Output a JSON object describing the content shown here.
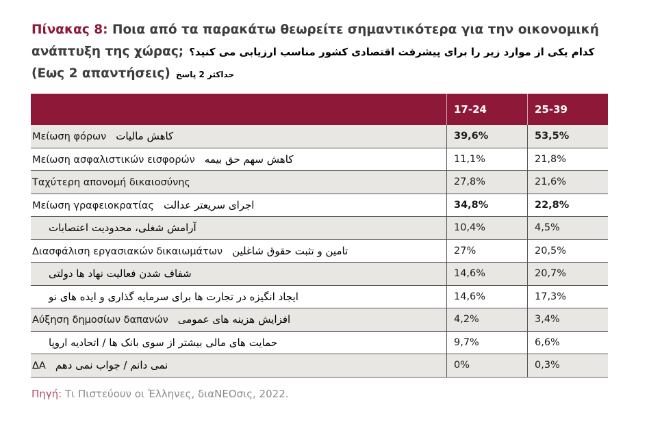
{
  "title": {
    "label": "Πίνακας 8:",
    "line1": " Ποια από τα παρακάτω θεωρείτε σημαντικότερα για την οικονομική",
    "line2": "ανάπτυξη της χώρας;",
    "line2_fa": "کدام یکی از موارد زیر را برای پیشرفت اقتصادی کشور مناسب ارزیابی می کنید؟",
    "line3": "(Εως 2 απαντήσεις)",
    "line3_fa": "حداکثر 2 پاسخ"
  },
  "table": {
    "headers": [
      "",
      "17-24",
      "25-39"
    ],
    "rows": [
      {
        "gr": "Μείωση φόρων",
        "fa": "کاهش مالیات",
        "v1": "39,6%",
        "v2": "53,5%",
        "bold": true
      },
      {
        "gr": "Μείωση ασφαλιστικών εισφορών",
        "fa": "کاهش سهم حق بیمه",
        "v1": "11,1%",
        "v2": "21,8%"
      },
      {
        "gr": "Ταχύτερη απονομή δικαιοσύνης",
        "fa": "",
        "v1": "27,8%",
        "v2": "21,6%"
      },
      {
        "gr": "Μείωση γραφειοκρατίας",
        "fa": "اجرای سریعتر عدالت",
        "v1": "34,8%",
        "v2": "22,8%",
        "bold": true
      },
      {
        "gr": "",
        "fa": "آرامش شغلی، محدودیت اعتصابات",
        "v1": "10,4%",
        "v2": "4,5%"
      },
      {
        "gr": "Διασφάλιση εργασιακών δικαιωμάτων",
        "fa": "تامین و تثبت حقوق شاغلین",
        "v1": "27%",
        "v2": "20,5%"
      },
      {
        "gr": "",
        "fa": "شفاف شدن فعالیت نهاد ها دولتی",
        "v1": "14,6%",
        "v2": "20,7%"
      },
      {
        "gr": "",
        "fa": "ایجاد انگیزه در تجارت ها برای سرمایه گذاری و ایده های نو",
        "v1": "14,6%",
        "v2": "17,3%"
      },
      {
        "gr": "Αύξηση δημοσίων δαπανών",
        "fa": "افزایش هزینه های عمومی",
        "v1": "4,2%",
        "v2": "3,4%"
      },
      {
        "gr": "",
        "fa": "حمایت های مالی بیشتر از سوی بانک ها / اتحادیه اروپا",
        "v1": "9,7%",
        "v2": "6,6%"
      },
      {
        "gr": "ΔΑ",
        "fa": "نمی دانم / جواب نمی دهم",
        "v1": "0%",
        "v2": "0,3%"
      }
    ]
  },
  "source": {
    "label": "Πηγή:",
    "text": " Τι Πιστεύουν οι Έλληνες, διαΝΕΟσις, 2022."
  },
  "colors": {
    "accent": "#8e1838",
    "row_alt": "#e9e7e3"
  }
}
